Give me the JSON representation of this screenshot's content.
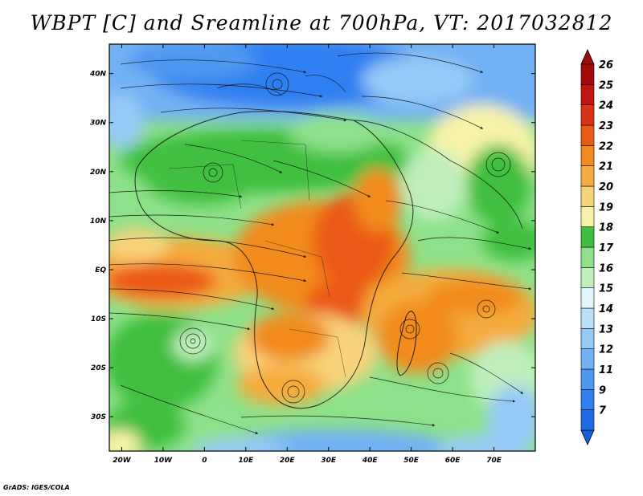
{
  "title": "WBPT [C] and Sreamline at 700hPa, VT: 2017032812",
  "credit": "GrADS: IGES/COLA",
  "map": {
    "lon_range": [
      -23,
      80
    ],
    "lat_range": [
      -37,
      46
    ],
    "x_ticks": [
      {
        "value": -20,
        "label": "20W"
      },
      {
        "value": -10,
        "label": "10W"
      },
      {
        "value": 0,
        "label": "0"
      },
      {
        "value": 10,
        "label": "10E"
      },
      {
        "value": 20,
        "label": "20E"
      },
      {
        "value": 30,
        "label": "30E"
      },
      {
        "value": 40,
        "label": "40E"
      },
      {
        "value": 50,
        "label": "50E"
      },
      {
        "value": 60,
        "label": "60E"
      },
      {
        "value": 70,
        "label": "70E"
      }
    ],
    "y_ticks": [
      {
        "value": 40,
        "label": "40N"
      },
      {
        "value": 30,
        "label": "30N"
      },
      {
        "value": 20,
        "label": "20N"
      },
      {
        "value": 10,
        "label": "10N"
      },
      {
        "value": 0,
        "label": "EQ"
      },
      {
        "value": -10,
        "label": "10S"
      },
      {
        "value": -20,
        "label": "20S"
      },
      {
        "value": -30,
        "label": "30S"
      }
    ]
  },
  "colorbar": {
    "levels": [
      {
        "label": "7",
        "color": "#1e6be6"
      },
      {
        "label": "9",
        "color": "#2e7ff0"
      },
      {
        "label": "11",
        "color": "#4f98f2"
      },
      {
        "label": "12",
        "color": "#72b1f4"
      },
      {
        "label": "13",
        "color": "#95c9f6"
      },
      {
        "label": "14",
        "color": "#b8e0f8"
      },
      {
        "label": "15",
        "color": "#e2f6fa"
      },
      {
        "label": "16",
        "color": "#bff0bc"
      },
      {
        "label": "17",
        "color": "#8ee08a"
      },
      {
        "label": "18",
        "color": "#3fbf3f"
      },
      {
        "label": "19",
        "color": "#f7f2a8"
      },
      {
        "label": "20",
        "color": "#f7d37a"
      },
      {
        "label": "21",
        "color": "#f5ac3e"
      },
      {
        "label": "22",
        "color": "#f28a1c"
      },
      {
        "label": "23",
        "color": "#ea5a14"
      },
      {
        "label": "24",
        "color": "#dc3114"
      },
      {
        "label": "25",
        "color": "#c41412"
      },
      {
        "label": "26",
        "color": "#a40a0a"
      }
    ],
    "low_color": "#1a5ee0",
    "high_color": "#a00a0a"
  }
}
